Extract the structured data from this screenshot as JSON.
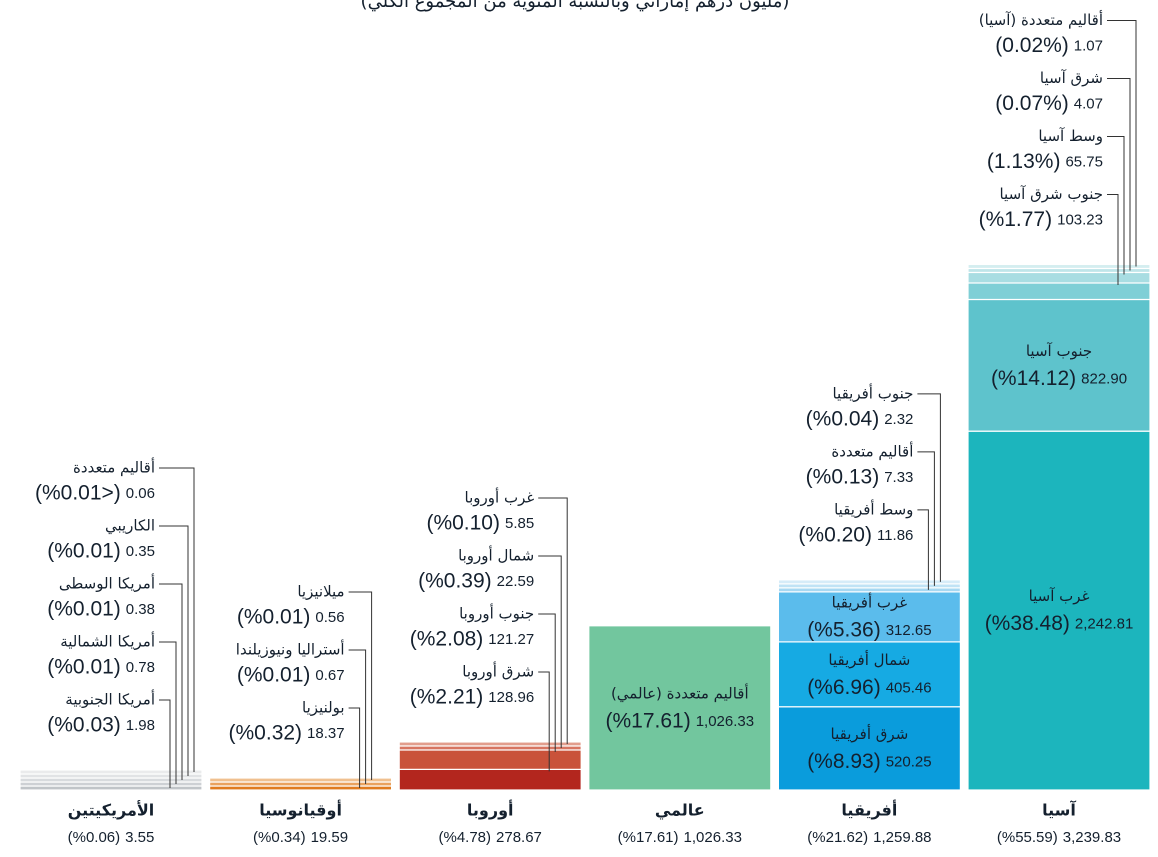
{
  "chart_data": {
    "type": "stacked-column",
    "subtitle": "(مليون درهم إماراتي وبالنسبة المئوية من المجموع الكلي)",
    "groups": [
      {
        "name": "آسيا",
        "value": 3239.83,
        "value_label": "3,239.83",
        "percent": 55.59,
        "percent_label": "(%55.59)",
        "segments": [
          {
            "name": "غرب آسيا",
            "value": 2242.81,
            "value_label": "2,242.81",
            "percent": 38.48,
            "percent_label": "(%38.48)",
            "color": "#1cb5bd"
          },
          {
            "name": "جنوب آسيا",
            "value": 822.9,
            "value_label": "822.90",
            "percent": 14.12,
            "percent_label": "(%14.12)",
            "color": "#5ec3cc"
          },
          {
            "name": "جنوب شرق آسيا",
            "value": 103.23,
            "percent": 1.77,
            "percent_label": "(%1.77)",
            "color": "#7fcfd6"
          },
          {
            "name": "وسط آسيا",
            "value": 65.75,
            "percent": 1.13,
            "percent_label": "(1.13%)",
            "color": "#a8dde2"
          },
          {
            "name": "شرق آسيا",
            "value": 4.07,
            "percent": 0.07,
            "percent_label": "(0.07%)",
            "color": "#bfe5e9"
          },
          {
            "name": "أقاليم متعددة (آسيا)",
            "value": 1.07,
            "percent": 0.02,
            "percent_label": "(0.02%)",
            "color": "#d4eef0"
          }
        ]
      },
      {
        "name": "أفريقيا",
        "value": 1259.88,
        "value_label": "1,259.88",
        "percent": 21.62,
        "percent_label": "(%21.62)",
        "segments": [
          {
            "name": "شرق أفريقيا",
            "value": 520.25,
            "percent": 8.93,
            "percent_label": "(%8.93)",
            "color": "#0a9cdc"
          },
          {
            "name": "شمال أفريقيا",
            "value": 405.46,
            "percent": 6.96,
            "percent_label": "(%6.96)",
            "color": "#16aae3"
          },
          {
            "name": "غرب أفريقيا",
            "value": 312.65,
            "percent": 5.36,
            "percent_label": "(%5.36)",
            "color": "#5bbcec"
          },
          {
            "name": "وسط أفريقيا",
            "value": 11.86,
            "percent": 0.2,
            "percent_label": "(%0.20)",
            "color": "#a7d8f2"
          },
          {
            "name": "أقاليم متعددة",
            "value": 7.33,
            "percent": 0.13,
            "percent_label": "(%0.13)",
            "color": "#c0e3f5"
          },
          {
            "name": "جنوب أفريقيا",
            "value": 2.32,
            "percent": 0.04,
            "percent_label": "(%0.04)",
            "color": "#d6ecf8"
          }
        ]
      },
      {
        "name": "عالمي",
        "value": 1026.33,
        "value_label": "1,026.33",
        "percent": 17.61,
        "percent_label": "(%17.61)",
        "segments": [
          {
            "name": "أقاليم متعددة (عالمي)",
            "value": 1026.33,
            "value_label": "1,026.33",
            "percent": 17.61,
            "percent_label": "(%17.61)",
            "color": "#72c69e"
          }
        ]
      },
      {
        "name": "أوروبا",
        "value": 278.67,
        "percent": 4.78,
        "percent_label": "(%4.78)",
        "segments": [
          {
            "name": "شرق أوروبا",
            "value": 128.96,
            "percent": 2.21,
            "percent_label": "(%2.21)",
            "color": "#b3261e"
          },
          {
            "name": "جنوب أوروبا",
            "value": 121.27,
            "percent": 2.08,
            "percent_label": "(%2.08)",
            "color": "#c9523a"
          },
          {
            "name": "شمال أوروبا",
            "value": 22.59,
            "percent": 0.39,
            "percent_label": "(%0.39)",
            "color": "#d77460"
          },
          {
            "name": "غرب أوروبا",
            "value": 5.85,
            "percent": 0.1,
            "percent_label": "(%0.10)",
            "color": "#e29d8c"
          }
        ]
      },
      {
        "name": "أوقيانوسيا",
        "value": 19.59,
        "percent": 0.34,
        "percent_label": "(%0.34)",
        "segments": [
          {
            "name": "بولنيزيا",
            "value": 18.37,
            "percent": 0.32,
            "percent_label": "(%0.32)",
            "color": "#e07b1f"
          },
          {
            "name": "أستراليا ونيوزيلندا",
            "value": 0.67,
            "percent": 0.01,
            "percent_label": "(%0.01)",
            "color": "#eaa25e"
          },
          {
            "name": "ميلانيزيا",
            "value": 0.56,
            "percent": 0.01,
            "percent_label": "(%0.01)",
            "color": "#f0c08f"
          }
        ]
      },
      {
        "name": "الأمريكيتين",
        "value": 3.55,
        "percent": 0.06,
        "percent_label": "(%0.06)",
        "segments": [
          {
            "name": "أمريكا الجنوبية",
            "value": 1.98,
            "percent": 0.03,
            "percent_label": "(%0.03)",
            "color": "#c0c4c8"
          },
          {
            "name": "أمريكا الشمالية",
            "value": 0.78,
            "percent": 0.01,
            "percent_label": "(%0.01)",
            "color": "#cdd0d4"
          },
          {
            "name": "أمريكا الوسطى",
            "value": 0.38,
            "percent": 0.01,
            "percent_label": "(%0.01)",
            "color": "#d7dadd"
          },
          {
            "name": "الكاريبي",
            "value": 0.35,
            "percent": 0.01,
            "percent_label": "(%0.01)",
            "color": "#e1e3e5"
          },
          {
            "name": "أقاليم متعددة",
            "value": 0.06,
            "percent": 0.01,
            "percent_label": "(%0.01>)",
            "color": "#eaebec"
          }
        ]
      }
    ]
  }
}
